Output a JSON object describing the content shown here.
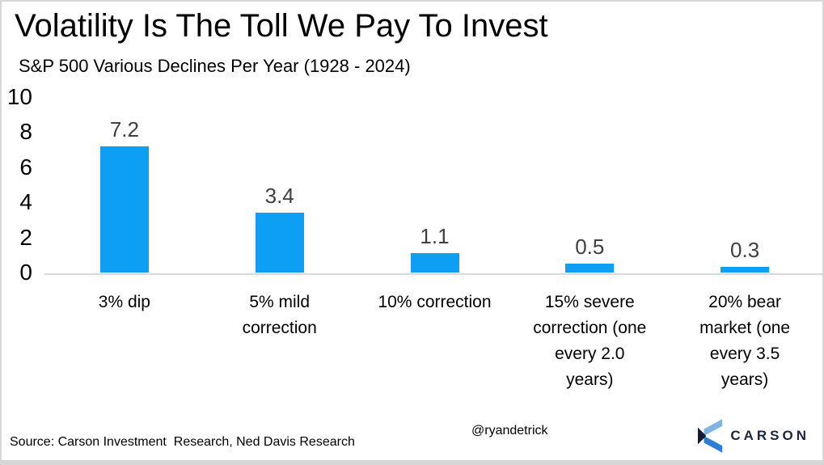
{
  "header": {
    "title": "Volatility Is The Toll We Pay To Invest",
    "subtitle": "S&P 500 Various Declines Per Year (1928 - 2024)"
  },
  "chart_data": {
    "type": "bar",
    "title": "Volatility Is The Toll We Pay To Invest",
    "subtitle": "S&P 500 Various Declines Per Year (1928 - 2024)",
    "categories": [
      "3% dip",
      "5% mild correction",
      "10% correction",
      "15% severe correction (one every 2.0 years)",
      "20% bear market (one every 3.5 years)"
    ],
    "category_lines": [
      "3% dip",
      "5% mild\ncorrection",
      "10% correction",
      "15% severe\ncorrection (one\nevery 2.0\nyears)",
      "20% bear\nmarket (one\nevery 3.5\nyears)"
    ],
    "values": [
      7.2,
      3.4,
      1.1,
      0.5,
      0.3
    ],
    "value_labels": [
      "7.2",
      "3.4",
      "1.1",
      "0.5",
      "0.3"
    ],
    "xlabel": "",
    "ylabel": "",
    "ylim": [
      0,
      10
    ],
    "yticks": [
      0,
      2,
      4,
      6,
      8,
      10
    ],
    "grid": false,
    "legend": false,
    "bar_color": "#0d9ff3",
    "value_label_color": "#404040",
    "axis_line_color": "#d9d9d9"
  },
  "footer": {
    "source": "Source: Carson Investment  Research, Ned Davis Research",
    "handle": "@ryandetrick",
    "logo": {
      "text": "CARSON",
      "icon": "carson-chevron-icon",
      "colors": {
        "light_blue": "#7fb4e4",
        "mid_blue": "#2e7ed6",
        "navy": "#141e38",
        "text_navy": "#1b2740"
      }
    }
  }
}
